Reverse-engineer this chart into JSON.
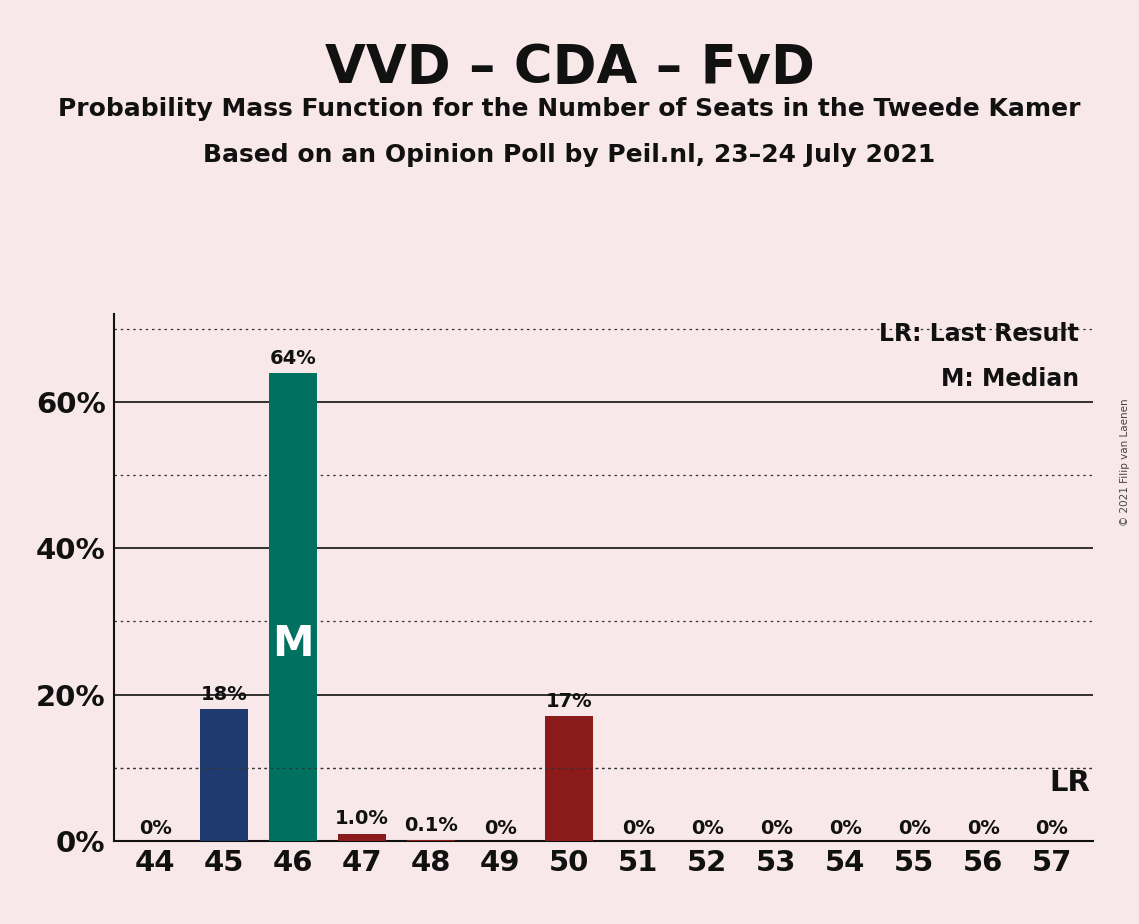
{
  "title": "VVD – CDA – FvD",
  "subtitle1": "Probability Mass Function for the Number of Seats in the Tweede Kamer",
  "subtitle2": "Based on an Opinion Poll by Peil.nl, 23–24 July 2021",
  "copyright": "© 2021 Filip van Laenen",
  "categories": [
    44,
    45,
    46,
    47,
    48,
    49,
    50,
    51,
    52,
    53,
    54,
    55,
    56,
    57
  ],
  "values": [
    0.0,
    0.18,
    0.64,
    0.01,
    0.001,
    0.0,
    0.17,
    0.0,
    0.0,
    0.0,
    0.0,
    0.0,
    0.0,
    0.0
  ],
  "bar_labels": [
    "0%",
    "18%",
    "64%",
    "1.0%",
    "0.1%",
    "0%",
    "17%",
    "0%",
    "0%",
    "0%",
    "0%",
    "0%",
    "0%",
    "0%"
  ],
  "bar_colors": [
    "#1e3a6e",
    "#1e3a6e",
    "#007060",
    "#8b1a1a",
    "#8b1a1a",
    "#8b1a1a",
    "#8b1a1a",
    "#8b1a1a",
    "#8b1a1a",
    "#8b1a1a",
    "#8b1a1a",
    "#8b1a1a",
    "#8b1a1a",
    "#8b1a1a"
  ],
  "median_bar_index": 2,
  "median_label": "M",
  "lr_value": 0.1,
  "lr_label": "LR",
  "legend_lr": "LR: Last Result",
  "legend_m": "M: Median",
  "background_color": "#f9e8ea",
  "ylim": [
    0,
    0.72
  ],
  "yticks": [
    0.0,
    0.2,
    0.4,
    0.6
  ],
  "ytick_labels": [
    "0%",
    "20%",
    "40%",
    "60%"
  ],
  "grid_dotted_at": [
    0.1,
    0.3,
    0.5,
    0.7
  ],
  "solid_lines_at": [
    0.2,
    0.4,
    0.6
  ],
  "title_fontsize": 38,
  "subtitle_fontsize": 18,
  "bar_label_fontsize": 14,
  "axis_tick_fontsize": 21,
  "median_label_fontsize": 30,
  "legend_fontsize": 17
}
